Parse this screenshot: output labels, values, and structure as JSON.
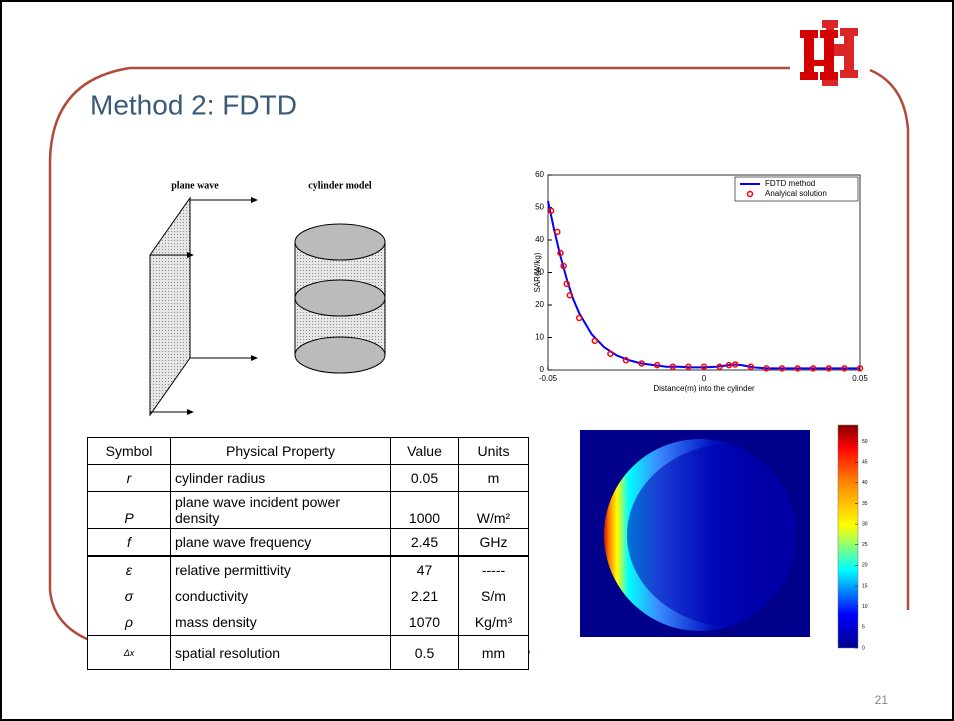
{
  "slide": {
    "title": "Method 2: FDTD",
    "page": "21"
  },
  "diagram": {
    "plane_label": "plane wave",
    "cylinder_label": "cylinder model"
  },
  "chart_data": {
    "type": "line",
    "xlabel": "Distance(m) into the cylinder",
    "ylabel": "SAR(W/kg)",
    "xlim": [
      -0.05,
      0.05
    ],
    "ylim": [
      0,
      60
    ],
    "xticks": [
      -0.05,
      0,
      0.05
    ],
    "yticks": [
      0,
      10,
      20,
      30,
      40,
      50,
      60
    ],
    "legend": "upper right",
    "series": [
      {
        "name": "FDTD method",
        "color": "#0000ff",
        "mode": "line",
        "x": [
          -0.05,
          -0.048,
          -0.046,
          -0.044,
          -0.042,
          -0.04,
          -0.036,
          -0.032,
          -0.028,
          -0.024,
          -0.02,
          -0.016,
          -0.012,
          -0.008,
          -0.004,
          0,
          0.004,
          0.008,
          0.01,
          0.012,
          0.016,
          0.02,
          0.03,
          0.04,
          0.05
        ],
        "values": [
          52,
          43,
          35,
          28,
          22,
          17.5,
          11,
          7,
          4.5,
          3,
          2,
          1.5,
          1,
          1,
          0.8,
          0.8,
          1,
          1.5,
          1.7,
          1.5,
          0.8,
          0.5,
          0.5,
          0.5,
          0.5
        ]
      },
      {
        "name": "Analyical solution",
        "color": "#ff0000",
        "mode": "markers",
        "x": [
          -0.049,
          -0.047,
          -0.046,
          -0.045,
          -0.044,
          -0.043,
          -0.04,
          -0.035,
          -0.03,
          -0.025,
          -0.02,
          -0.015,
          -0.01,
          -0.005,
          0,
          0.005,
          0.008,
          0.01,
          0.015,
          0.02,
          0.025,
          0.03,
          0.035,
          0.04,
          0.045,
          0.05
        ],
        "values": [
          49,
          42.5,
          36,
          32,
          26.5,
          23,
          16,
          9,
          5,
          3,
          2,
          1.5,
          1,
          1,
          1,
          1,
          1.5,
          1.7,
          1,
          0.5,
          0.5,
          0.5,
          0.5,
          0.5,
          0.5,
          0.5
        ]
      }
    ]
  },
  "heatmap": {
    "colorbar_lim": [
      0,
      54
    ],
    "colorbar_ticks": [
      0,
      5,
      10,
      15,
      20,
      25,
      30,
      35,
      40,
      45,
      50
    ]
  },
  "table": {
    "header": [
      "Symbol",
      "Physical Property",
      "Value",
      "Units"
    ],
    "rows": [
      [
        "r",
        "cylinder radius",
        "0.05",
        "m"
      ],
      [
        "P",
        "plane wave incident power density",
        "1000",
        "W/m²"
      ],
      [
        "f",
        "plane wave frequency",
        "2.45",
        "GHz"
      ],
      [
        "ε",
        "relative permittivity",
        "47",
        "-----"
      ],
      [
        "σ",
        "conductivity",
        "2.21",
        "S/m"
      ],
      [
        "ρ",
        "mass density",
        "1070",
        "Kg/m³"
      ],
      [
        "Δx",
        "spatial resolution",
        "0.5",
        "mm"
      ]
    ]
  }
}
